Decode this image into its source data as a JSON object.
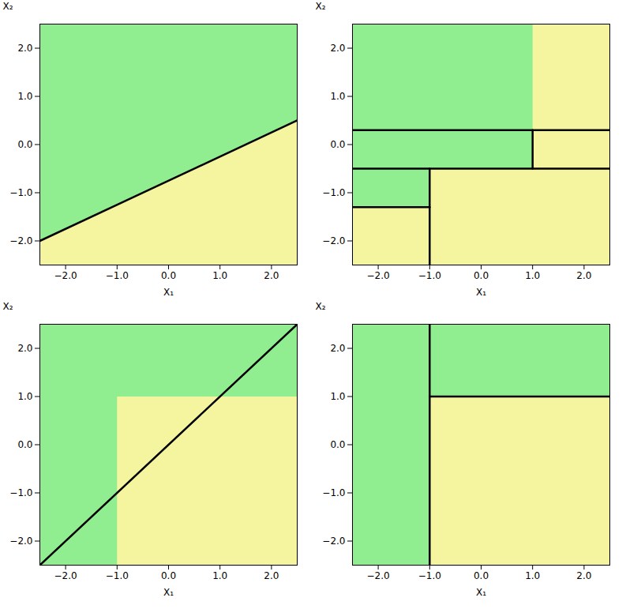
{
  "chart_data": [
    {
      "type": "boundary",
      "xlabel": "X₁",
      "ylabel": "X₂",
      "xlim": [
        -2.5,
        2.5
      ],
      "ylim": [
        -2.5,
        2.5
      ],
      "xticks": [
        -2,
        -1,
        0,
        1,
        2
      ],
      "yticks": [
        -2,
        -1,
        0,
        1,
        2
      ],
      "color": "#90EE90",
      "series": [
        {
          "type": "polygon",
          "color": "#F5F5A0",
          "x": [
            -2.5,
            2.5,
            2.5,
            -2.5
          ],
          "values": [
            -2.5,
            -2.5,
            0.5,
            -2.0
          ]
        },
        {
          "type": "line",
          "color": "black",
          "x": [
            -2.5,
            2.5
          ],
          "values": [
            -2.0,
            0.5
          ]
        }
      ]
    },
    {
      "type": "boundary",
      "xlabel": "X₁",
      "ylabel": "X₂",
      "xlim": [
        -2.5,
        2.5
      ],
      "ylim": [
        -2.5,
        2.5
      ],
      "xticks": [
        -2,
        -1,
        0,
        1,
        2
      ],
      "yticks": [
        -2,
        -1,
        0,
        1,
        2
      ],
      "color": "#90EE90",
      "series": [
        {
          "type": "polygon",
          "color": "#F5F5A0",
          "x": [
            1.0,
            2.5,
            2.5,
            1.0
          ],
          "values": [
            0.3,
            0.3,
            2.5,
            2.5
          ]
        },
        {
          "type": "polygon",
          "color": "#F5F5A0",
          "x": [
            1.0,
            2.5,
            2.5,
            1.0
          ],
          "values": [
            -0.5,
            -0.5,
            0.3,
            0.3
          ]
        },
        {
          "type": "polygon",
          "color": "#F5F5A0",
          "x": [
            -1.0,
            2.5,
            2.5,
            -1.0
          ],
          "values": [
            -2.5,
            -2.5,
            -0.5,
            -0.5
          ]
        },
        {
          "type": "polygon",
          "color": "#F5F5A0",
          "x": [
            -2.5,
            -1.0,
            -1.0,
            -2.5
          ],
          "values": [
            -2.5,
            -2.5,
            -1.3,
            -1.3
          ]
        },
        {
          "type": "line",
          "color": "black",
          "x": [
            -2.5,
            2.5
          ],
          "values": [
            0.3,
            0.3
          ]
        },
        {
          "type": "line",
          "color": "black",
          "x": [
            -2.5,
            2.5
          ],
          "values": [
            -0.5,
            -0.5
          ]
        },
        {
          "type": "line",
          "color": "black",
          "x": [
            -2.5,
            -1.0
          ],
          "values": [
            -1.3,
            -1.3
          ]
        },
        {
          "type": "line",
          "color": "black",
          "x": [
            -1.0,
            -1.0
          ],
          "values": [
            -2.5,
            -0.5
          ]
        },
        {
          "type": "line",
          "color": "black",
          "x": [
            1.0,
            1.0
          ],
          "values": [
            -0.5,
            0.3
          ]
        }
      ]
    },
    {
      "type": "boundary",
      "xlabel": "X₁",
      "ylabel": "X₂",
      "xlim": [
        -2.5,
        2.5
      ],
      "ylim": [
        -2.5,
        2.5
      ],
      "xticks": [
        -2,
        -1,
        0,
        1,
        2
      ],
      "yticks": [
        -2,
        -1,
        0,
        1,
        2
      ],
      "color": "#90EE90",
      "series": [
        {
          "type": "polygon",
          "color": "#F5F5A0",
          "x": [
            -1.0,
            2.5,
            2.5,
            -1.0
          ],
          "values": [
            -2.5,
            -2.5,
            1.0,
            1.0
          ]
        },
        {
          "type": "line",
          "color": "black",
          "x": [
            -2.5,
            2.5
          ],
          "values": [
            -2.5,
            2.5
          ]
        }
      ]
    },
    {
      "type": "boundary",
      "xlabel": "X₁",
      "ylabel": "X₂",
      "xlim": [
        -2.5,
        2.5
      ],
      "ylim": [
        -2.5,
        2.5
      ],
      "xticks": [
        -2,
        -1,
        0,
        1,
        2
      ],
      "yticks": [
        -2,
        -1,
        0,
        1,
        2
      ],
      "color": "#90EE90",
      "series": [
        {
          "type": "polygon",
          "color": "#F5F5A0",
          "x": [
            -1.0,
            2.5,
            2.5,
            -1.0
          ],
          "values": [
            -2.5,
            -2.5,
            1.0,
            1.0
          ]
        },
        {
          "type": "line",
          "color": "black",
          "x": [
            -1.0,
            -1.0
          ],
          "values": [
            -2.5,
            2.5
          ]
        },
        {
          "type": "line",
          "color": "black",
          "x": [
            -1.0,
            2.5
          ],
          "values": [
            1.0,
            1.0
          ]
        }
      ]
    }
  ]
}
